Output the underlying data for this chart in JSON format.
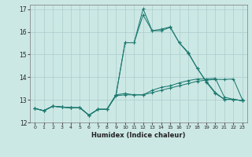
{
  "xlabel": "Humidex (Indice chaleur)",
  "bg_color": "#cce8e5",
  "grid_color": "#aacccc",
  "line_color": "#1e7a70",
  "xlim": [
    -0.5,
    23.5
  ],
  "ylim": [
    12,
    17.2
  ],
  "yticks": [
    12,
    13,
    14,
    15,
    16,
    17
  ],
  "xticks": [
    0,
    1,
    2,
    3,
    4,
    5,
    6,
    7,
    8,
    9,
    10,
    11,
    12,
    13,
    14,
    15,
    16,
    17,
    18,
    19,
    20,
    21,
    22,
    23
  ],
  "s1_x": [
    0,
    1,
    2,
    3,
    4,
    5,
    6,
    7,
    8,
    9,
    10,
    11,
    12,
    13,
    14,
    15,
    16,
    17,
    18,
    19,
    20,
    21,
    22,
    23
  ],
  "s1_y": [
    12.62,
    12.52,
    12.72,
    12.68,
    12.65,
    12.65,
    12.32,
    12.58,
    12.58,
    13.18,
    13.22,
    13.22,
    13.22,
    13.32,
    13.42,
    13.52,
    13.62,
    13.72,
    13.82,
    13.87,
    13.9,
    13.9,
    13.92,
    13.0
  ],
  "s2_x": [
    0,
    1,
    2,
    3,
    4,
    5,
    6,
    7,
    8,
    9,
    10,
    11,
    12,
    13,
    14,
    15,
    16,
    17,
    18,
    19,
    20,
    21,
    22,
    23
  ],
  "s2_y": [
    12.62,
    12.52,
    12.72,
    12.68,
    12.65,
    12.65,
    12.32,
    12.58,
    12.58,
    13.22,
    13.28,
    13.22,
    13.22,
    13.42,
    13.55,
    13.62,
    13.75,
    13.85,
    13.92,
    13.92,
    13.95,
    13.12,
    13.02,
    12.96
  ],
  "s3_x": [
    0,
    1,
    2,
    3,
    4,
    5,
    6,
    7,
    8,
    9,
    10,
    11,
    12,
    13,
    14,
    15,
    16,
    17,
    18,
    19,
    20,
    21,
    22,
    23
  ],
  "s3_y": [
    12.62,
    12.52,
    12.72,
    12.68,
    12.65,
    12.65,
    12.32,
    12.58,
    12.58,
    13.22,
    15.52,
    15.52,
    16.75,
    16.05,
    16.05,
    16.2,
    15.52,
    15.05,
    14.4,
    13.78,
    13.28,
    13.02,
    13.02,
    12.96
  ],
  "s4_x": [
    0,
    1,
    2,
    3,
    4,
    5,
    6,
    7,
    8,
    9,
    10,
    11,
    12,
    13,
    14,
    15,
    16,
    17,
    18,
    19,
    20,
    21,
    22,
    23
  ],
  "s4_y": [
    12.62,
    12.52,
    12.72,
    12.68,
    12.65,
    12.65,
    12.32,
    12.58,
    12.58,
    13.22,
    15.52,
    15.52,
    17.02,
    16.05,
    16.12,
    16.22,
    15.52,
    15.1,
    14.38,
    13.82,
    13.32,
    13.02,
    13.02,
    12.96
  ]
}
